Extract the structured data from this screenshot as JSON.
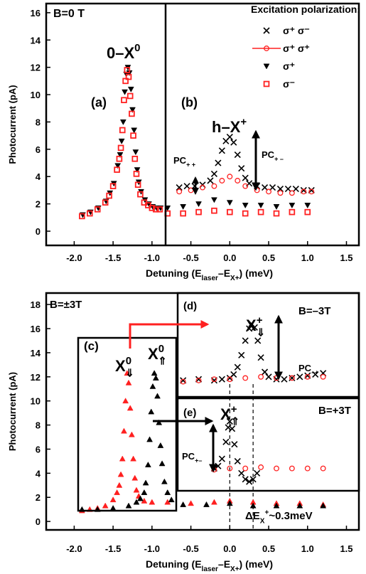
{
  "chart_data": [
    {
      "type": "scatter",
      "xlim": [
        -2.36,
        1.66
      ],
      "ylim": [
        -1.04,
        16.67
      ],
      "xticks": [
        {
          "value": -2,
          "label": "-2.0"
        },
        -1.5,
        {
          "value": -1,
          "label": "-1.0"
        },
        -0.5,
        {
          "value": 0,
          "label": "0.0"
        },
        0.5,
        {
          "value": 1,
          "label": "1.0"
        },
        1.5
      ],
      "yticks": [
        0,
        2,
        4,
        6,
        8,
        10,
        12,
        14,
        16
      ],
      "ylabel": "Photocurrent (pA)",
      "xlabel": [
        {
          "text": "Detuning (E"
        },
        {
          "sub": "laser"
        },
        {
          "text": "–E"
        },
        {
          "sub": "X+"
        },
        {
          "text": ") (meV)"
        }
      ],
      "legend": {
        "title": "Excitation polarization:"
      },
      "series": [
        {
          "name": "σ⁺ σ⁻",
          "color": "#000000",
          "marker": "cross",
          "x": [
            -0.65,
            -0.55,
            -0.45,
            -0.35,
            -0.25,
            -0.2,
            -0.15,
            -0.1,
            -0.05,
            0,
            0.05,
            0.1,
            0.15,
            0.2,
            0.25,
            0.35,
            0.45,
            0.55,
            0.65,
            0.75,
            0.85,
            0.95,
            1.05
          ],
          "values": [
            3.2,
            3.3,
            3.3,
            3.4,
            3.7,
            4.2,
            5.0,
            5.9,
            6.6,
            6.9,
            6.5,
            5.6,
            4.6,
            3.9,
            3.5,
            3.3,
            3.2,
            3.2,
            3.1,
            3.1,
            3.1,
            3.0,
            3.0
          ]
        },
        {
          "name": "σ⁺ σ⁺",
          "color": "#ff2020",
          "marker": "circle-line",
          "x": [
            -0.65,
            -0.5,
            -0.35,
            -0.2,
            -0.1,
            0,
            0.1,
            0.2,
            0.35,
            0.5,
            0.65,
            0.8,
            0.95,
            1.05
          ],
          "values": [
            2.9,
            3.0,
            3.2,
            3.3,
            3.7,
            4.0,
            3.7,
            3.3,
            3.0,
            2.9,
            2.8,
            2.8,
            2.9,
            2.9
          ]
        },
        {
          "name": "σ⁺",
          "color": "#000000",
          "marker": "triangle-down",
          "x": [
            -1.89,
            -1.79,
            -1.69,
            -1.59,
            -1.54,
            -1.49,
            -1.44,
            -1.41,
            -1.39,
            -1.37,
            -1.35,
            -1.33,
            -1.31,
            -1.29,
            -1.27,
            -1.25,
            -1.23,
            -1.21,
            -1.19,
            -1.17,
            -1.14,
            -1.09,
            -1.04,
            -0.99,
            -0.94,
            -0.89,
            -0.8,
            -0.6,
            -0.4,
            -0.2,
            0,
            0.2,
            0.4,
            0.6,
            0.8,
            1.0
          ],
          "values": [
            1.2,
            1.4,
            1.7,
            2.2,
            2.8,
            3.5,
            4.8,
            5.6,
            6.6,
            8.0,
            10.2,
            11.5,
            12.0,
            11.6,
            10.4,
            8.9,
            7.4,
            5.8,
            4.5,
            3.6,
            2.9,
            2.3,
            2.0,
            1.8,
            1.7,
            1.7,
            1.7,
            1.8,
            2.0,
            2.3,
            2.1,
            1.9,
            1.9,
            1.8,
            1.9,
            1.9
          ]
        },
        {
          "name": "σ⁻",
          "color": "#ff2020",
          "marker": "square-open",
          "x": [
            -1.9,
            -1.8,
            -1.7,
            -1.6,
            -1.55,
            -1.5,
            -1.45,
            -1.42,
            -1.4,
            -1.38,
            -1.36,
            -1.34,
            -1.32,
            -1.3,
            -1.28,
            -1.26,
            -1.24,
            -1.22,
            -1.2,
            -1.18,
            -1.15,
            -1.1,
            -1.05,
            -1.0,
            -0.95,
            -0.9,
            -0.8,
            -0.6,
            -0.4,
            -0.2,
            0,
            0.2,
            0.4,
            0.6,
            0.8,
            1.0
          ],
          "values": [
            1.1,
            1.3,
            1.6,
            2.1,
            2.6,
            3.3,
            4.5,
            5.3,
            6.1,
            7.4,
            9.6,
            11.0,
            11.8,
            11.3,
            9.9,
            8.6,
            7.0,
            5.3,
            4.2,
            3.4,
            2.7,
            2.1,
            1.9,
            1.7,
            1.6,
            1.6,
            1.3,
            1.3,
            1.4,
            1.5,
            1.4,
            1.3,
            1.4,
            1.3,
            1.4,
            1.4
          ]
        }
      ],
      "annotations": [
        [
          {
            "text": "B=0 T"
          }
        ],
        [
          {
            "text": "0–X"
          },
          {
            "sup": "0"
          }
        ],
        [
          {
            "text": "(a)"
          }
        ],
        [
          {
            "text": "(b)"
          }
        ],
        [
          {
            "text": "h–X"
          },
          {
            "sup": "+"
          }
        ],
        [
          {
            "text": "PC"
          },
          {
            "sub": "+ +"
          }
        ],
        [
          {
            "text": "PC"
          },
          {
            "sub": "+ –"
          }
        ]
      ]
    },
    {
      "type": "scatter",
      "xlim": [
        -2.36,
        1.66
      ],
      "ylim": [
        -0.7,
        18.95
      ],
      "xticks": [
        {
          "value": -2,
          "label": "-2.0"
        },
        -1.5,
        {
          "value": -1,
          "label": "-1.0"
        },
        -0.5,
        {
          "value": 0,
          "label": "0.0"
        },
        0.5,
        {
          "value": 1,
          "label": "1.0"
        },
        1.5
      ],
      "yticks": [
        0,
        2,
        4,
        6,
        8,
        10,
        12,
        14,
        16,
        18
      ],
      "ylabel": "Photocurrent (pA)",
      "xlabel": [
        {
          "text": "Detuning (E"
        },
        {
          "sub": "laser"
        },
        {
          "text": "–E"
        },
        {
          "sub": "X+"
        },
        {
          "text": ") (meV)"
        }
      ],
      "vlines": [
        0,
        0.3
      ],
      "series": [
        {
          "color": "#ff2020",
          "marker": "triangle-up",
          "x": [
            -1.9,
            -1.8,
            -1.7,
            -1.6,
            -1.5,
            -1.45,
            -1.42,
            -1.4,
            -1.38,
            -1.36,
            -1.34,
            -1.32,
            -1.3,
            -1.28,
            -1.26,
            -1.24,
            -1.22,
            -1.2,
            -1.17,
            -1.1,
            -1.0,
            -0.8,
            -0.5,
            -0.2,
            0,
            0.3,
            0.6,
            0.9,
            1.2
          ],
          "values": [
            0.9,
            1.0,
            1.1,
            1.3,
            1.8,
            2.4,
            3.0,
            3.9,
            5.2,
            7.5,
            10.0,
            12.3,
            11.5,
            9.4,
            7.2,
            5.2,
            3.6,
            2.6,
            2.1,
            1.7,
            1.6,
            1.6,
            1.5,
            1.6,
            1.7,
            1.6,
            1.5,
            1.5,
            1.4
          ]
        },
        {
          "color": "#000000",
          "marker": "triangle-up",
          "x": [
            -1.9,
            -1.7,
            -1.5,
            -1.3,
            -1.2,
            -1.15,
            -1.1,
            -1.08,
            -1.05,
            -1.03,
            -1.01,
            -0.99,
            -0.97,
            -0.95,
            -0.93,
            -0.91,
            -0.89,
            -0.87,
            -0.84,
            -0.8,
            -0.75,
            -0.6,
            -0.3,
            0,
            0.3,
            0.6,
            0.9,
            1.2
          ],
          "values": [
            1.0,
            1.0,
            1.1,
            1.3,
            1.6,
            1.9,
            2.4,
            3.2,
            4.7,
            6.8,
            9.1,
            11.2,
            12.3,
            11.9,
            10.4,
            8.2,
            6.3,
            4.8,
            3.3,
            2.4,
            1.8,
            1.4,
            1.4,
            1.5,
            1.3,
            1.3,
            1.3,
            1.3
          ]
        },
        {
          "color": "#000000",
          "marker": "cross",
          "x": [
            -0.6,
            -0.4,
            -0.2,
            -0.1,
            0,
            0.05,
            0.1,
            0.15,
            0.2,
            0.25,
            0.28,
            0.32,
            0.36,
            0.4,
            0.45,
            0.5,
            0.6,
            0.7,
            0.8,
            0.9,
            1.0,
            1.1,
            1.2
          ],
          "values": [
            11.7,
            11.8,
            11.7,
            11.8,
            11.9,
            12.2,
            12.8,
            13.8,
            15.0,
            16.0,
            16.4,
            16.1,
            15.0,
            13.6,
            12.4,
            12.0,
            11.8,
            11.8,
            11.9,
            12.0,
            12.1,
            12.2,
            12.3
          ]
        },
        {
          "color": "#ff2020",
          "marker": "circle-open",
          "x": [
            -0.6,
            -0.4,
            -0.2,
            0,
            0.2,
            0.4,
            0.6,
            0.8,
            1.0,
            1.2
          ],
          "values": [
            11.6,
            11.7,
            11.8,
            11.8,
            11.9,
            12.0,
            11.9,
            11.9,
            12.0,
            12.0
          ]
        },
        {
          "color": "#000000",
          "marker": "cross",
          "x": [
            -0.2,
            -0.15,
            -0.1,
            -0.05,
            -0.02,
            0,
            0.03,
            0.06,
            0.1,
            0.15,
            0.2,
            0.25,
            0.3,
            0.35
          ],
          "values": [
            4.4,
            4.6,
            5.2,
            6.6,
            7.8,
            8.3,
            7.7,
            6.4,
            5.0,
            4.0,
            3.5,
            3.3,
            3.5,
            4.0
          ]
        },
        {
          "color": "#ff2020",
          "marker": "circle-open",
          "x": [
            -0.2,
            0,
            0.2,
            0.4,
            0.6,
            0.8,
            1.0,
            1.2
          ],
          "values": [
            4.3,
            4.4,
            4.4,
            4.5,
            4.4,
            4.4,
            4.4,
            4.4
          ]
        }
      ],
      "annotations": [
        [
          {
            "text": "B=±3T"
          }
        ],
        [
          {
            "text": "(c)"
          }
        ],
        [
          {
            "text": "X"
          },
          {
            "sup": "0"
          },
          {
            "sub": "⇓"
          }
        ],
        [
          {
            "text": "X"
          },
          {
            "sup": "0"
          },
          {
            "sub": "⇑"
          }
        ],
        [
          {
            "text": "(d)"
          }
        ],
        [
          {
            "text": "X"
          },
          {
            "sup": "+"
          },
          {
            "sub": "⇓"
          }
        ],
        [
          {
            "text": "B=–3T"
          }
        ],
        [
          {
            "text": "PC"
          },
          {
            "sub": "–+"
          }
        ],
        [
          {
            "text": "(e)"
          }
        ],
        [
          {
            "text": "X"
          },
          {
            "sup": "+"
          },
          {
            "sub": "⇑"
          }
        ],
        [
          {
            "text": "B=+3T"
          }
        ],
        [
          {
            "text": "PC"
          },
          {
            "sub": "+–"
          }
        ],
        [
          {
            "text": "ΔE"
          },
          {
            "sub": "X"
          },
          {
            "sup": "+"
          },
          {
            "text": "~0.3meV"
          }
        ]
      ]
    }
  ]
}
